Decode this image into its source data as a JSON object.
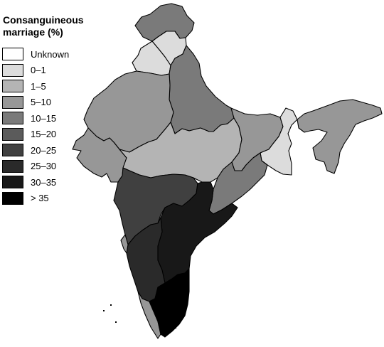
{
  "legend": {
    "title": "Consanguineous marriage (%)",
    "items": [
      {
        "label": "Unknown",
        "color": "#ffffff"
      },
      {
        "label": "0–1",
        "color": "#dcdcdc"
      },
      {
        "label": "1–5",
        "color": "#b4b4b4"
      },
      {
        "label": "5–10",
        "color": "#979797"
      },
      {
        "label": "10–15",
        "color": "#7a7a7a"
      },
      {
        "label": "15–20",
        "color": "#5b5b5b"
      },
      {
        "label": "20–25",
        "color": "#404040"
      },
      {
        "label": "25–30",
        "color": "#2a2a2a"
      },
      {
        "label": "30–35",
        "color": "#181818"
      },
      {
        "label": "> 35",
        "color": "#000000"
      }
    ]
  },
  "regions": [
    {
      "name": "jammu-kashmir",
      "category": "10–15"
    },
    {
      "name": "himachal-pradesh",
      "category": "0–1"
    },
    {
      "name": "punjab",
      "category": "0–1"
    },
    {
      "name": "uttar-pradesh",
      "category": "10–15"
    },
    {
      "name": "rajasthan",
      "category": "5–10"
    },
    {
      "name": "gujarat",
      "category": "5–10"
    },
    {
      "name": "madhya-pradesh",
      "category": "1–5"
    },
    {
      "name": "bihar",
      "category": "5–10"
    },
    {
      "name": "west-bengal",
      "category": "0–1"
    },
    {
      "name": "orissa",
      "category": "10–15"
    },
    {
      "name": "northeast",
      "category": "5–10"
    },
    {
      "name": "maharashtra",
      "category": "20–25"
    },
    {
      "name": "andhra-pradesh",
      "category": "30–35"
    },
    {
      "name": "karnataka",
      "category": "25–30"
    },
    {
      "name": "goa",
      "category": "5–10"
    },
    {
      "name": "kerala",
      "category": "5–10"
    },
    {
      "name": "tamil-nadu",
      "category": "> 35"
    }
  ]
}
